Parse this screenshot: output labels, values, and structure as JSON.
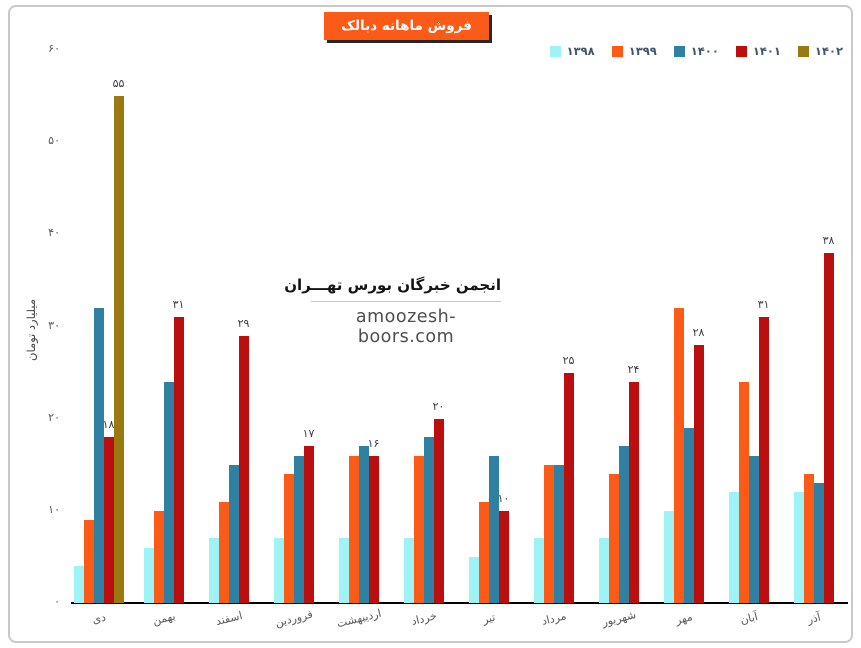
{
  "title_banner": {
    "text": "فروش ماهانه دبالک",
    "bg_color": "#fb5a17",
    "text_color": "#ffffff"
  },
  "watermark": {
    "line1": "انجمن خبرگان بورس تهـــران",
    "line2": "amoozesh-boors.com"
  },
  "chart_data": {
    "type": "bar",
    "title": "فروش ماهانه دبالک",
    "xlabel": "",
    "ylabel": "میلیارد تومان",
    "ylim": [
      0,
      60
    ],
    "grid": false,
    "legend_position": "top-right",
    "axis_color": "#000000",
    "tick_text_color": "#595959",
    "value_label_color": "#3d3d3d",
    "y_ticks": [
      0,
      10,
      20,
      30,
      40,
      50,
      60
    ],
    "y_tick_labels": [
      "۰",
      "۱۰",
      "۲۰",
      "۳۰",
      "۴۰",
      "۵۰",
      "۶۰"
    ],
    "categories": [
      "دی",
      "بهمن",
      "اسفند",
      "فروردین",
      "اردیبهشت",
      "خرداد",
      "تیر",
      "مرداد",
      "شهریور",
      "مهر",
      "آبان",
      "آذر"
    ],
    "series": [
      {
        "name": "۱۳۹۸",
        "color": "#9df3f5",
        "values": [
          4,
          6,
          7,
          7,
          7,
          7,
          5,
          7,
          7,
          10,
          12,
          12
        ],
        "labels": [
          null,
          null,
          null,
          null,
          null,
          null,
          null,
          null,
          null,
          null,
          null,
          null
        ]
      },
      {
        "name": "۱۳۹۹",
        "color": "#fb5a17",
        "values": [
          9,
          10,
          11,
          14,
          16,
          16,
          11,
          15,
          14,
          32,
          24,
          14
        ],
        "labels": [
          null,
          null,
          null,
          null,
          null,
          null,
          null,
          null,
          null,
          null,
          null,
          null
        ]
      },
      {
        "name": "۱۴۰۰",
        "color": "#2e81a0",
        "values": [
          32,
          24,
          15,
          16,
          17,
          18,
          16,
          15,
          17,
          19,
          16,
          13
        ],
        "labels": [
          null,
          null,
          null,
          null,
          null,
          null,
          null,
          null,
          null,
          null,
          null,
          null
        ]
      },
      {
        "name": "۱۴۰۱",
        "color": "#bb0e0e",
        "values": [
          18,
          31,
          29,
          17,
          16,
          20,
          10,
          25,
          24,
          28,
          31,
          38
        ],
        "labels": [
          "۱۸",
          "۳۱",
          "۲۹",
          "۱۷",
          "۱۶",
          "۲۰",
          "۱۰",
          "۲۵",
          "۲۴",
          "۲۸",
          "۳۱",
          "۳۸"
        ]
      },
      {
        "name": "۱۴۰۲",
        "color": "#9a7a10",
        "values": [
          55,
          null,
          null,
          null,
          null,
          null,
          null,
          null,
          null,
          null,
          null,
          null
        ],
        "labels": [
          "۵۵",
          null,
          null,
          null,
          null,
          null,
          null,
          null,
          null,
          null,
          null,
          null
        ]
      }
    ]
  }
}
